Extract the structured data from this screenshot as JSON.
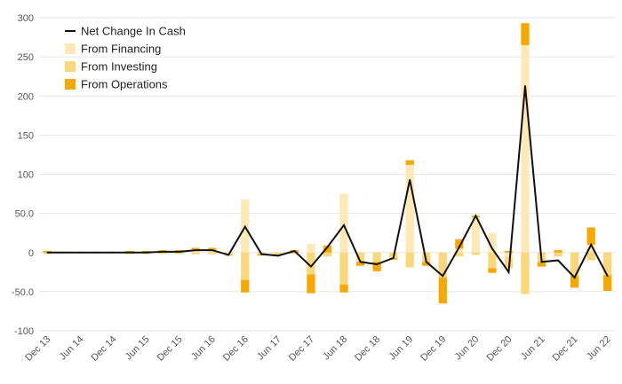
{
  "chart_data": {
    "type": "bar",
    "stacked": true,
    "x": [
      "Dec 13",
      "Mar 14",
      "Jun 14",
      "Sep 14",
      "Dec 14",
      "Mar 15",
      "Jun 15",
      "Sep 15",
      "Dec 15",
      "Mar 16",
      "Jun 16",
      "Sep 16",
      "Dec 16",
      "Mar 17",
      "Jun 17",
      "Sep 17",
      "Dec 17",
      "Mar 18",
      "Jun 18",
      "Sep 18",
      "Dec 18",
      "Mar 19",
      "Jun 19",
      "Sep 19",
      "Dec 19",
      "Mar 20",
      "Jun 20",
      "Sep 20",
      "Dec 20",
      "Mar 21",
      "Jun 21",
      "Sep 21",
      "Dec 21",
      "Mar 22",
      "Jun 22"
    ],
    "x_tick_labels": [
      "Dec 13",
      "Jun 14",
      "Dec 14",
      "Jun 15",
      "Dec 15",
      "Jun 16",
      "Dec 16",
      "Jun 17",
      "Dec 17",
      "Jun 18",
      "Dec 18",
      "Jun 19",
      "Dec 19",
      "Jun 20",
      "Dec 20",
      "Jun 21",
      "Dec 21",
      "Jun 22"
    ],
    "y_tick_labels": [
      "-100",
      "-50.0",
      "0",
      "50.0",
      "100",
      "150",
      "200",
      "250",
      "300"
    ],
    "ylim": [
      -100,
      300
    ],
    "series": [
      {
        "name": "Net Change In Cash",
        "kind": "line",
        "color": "#111111",
        "values": [
          0,
          0,
          0,
          0,
          0,
          0,
          0,
          1,
          1,
          3,
          3,
          -3,
          33,
          -2,
          -4,
          2,
          -18,
          7,
          35,
          -12,
          -15,
          -7,
          93,
          -12,
          -30,
          7,
          47,
          5,
          -25,
          213,
          -12,
          -10,
          -32,
          10,
          -30
        ]
      },
      {
        "name": "From Financing",
        "kind": "bar",
        "color": "#fde9b6",
        "values": [
          0,
          0,
          0,
          0,
          0,
          0,
          0,
          0,
          0,
          3,
          3,
          0,
          68,
          0,
          0,
          0,
          11,
          0,
          75,
          0,
          0,
          0,
          112,
          0,
          0,
          5,
          45,
          25,
          -5,
          265,
          0,
          0,
          0,
          10,
          0
        ]
      },
      {
        "name": "From Investing",
        "kind": "bar",
        "color": "#fbd77c",
        "values": [
          -2,
          -1,
          -1,
          -1,
          -1,
          -2,
          -2,
          -2,
          -2,
          -2,
          -2,
          -3,
          -35,
          -2,
          -3,
          -2,
          -28,
          -5,
          -41,
          -12,
          -12,
          -7,
          -19,
          -12,
          -32,
          -5,
          -3,
          -20,
          -15,
          -53,
          -12,
          -5,
          -30,
          -10,
          -29
        ]
      },
      {
        "name": "From Operations",
        "kind": "bar",
        "color": "#f5a800",
        "values": [
          2,
          1,
          1,
          1,
          1,
          2,
          2,
          3,
          3,
          3,
          3,
          -1,
          -16,
          -2,
          -1,
          3,
          -24,
          9,
          -10,
          -5,
          -12,
          -2,
          6,
          -5,
          -33,
          12,
          2,
          -6,
          2,
          28,
          -6,
          3,
          -15,
          22,
          -20
        ]
      }
    ],
    "legend": {
      "position": "top-left",
      "entries": [
        "Net Change In Cash",
        "From Financing",
        "From Investing",
        "From Operations"
      ]
    },
    "grid": true
  }
}
